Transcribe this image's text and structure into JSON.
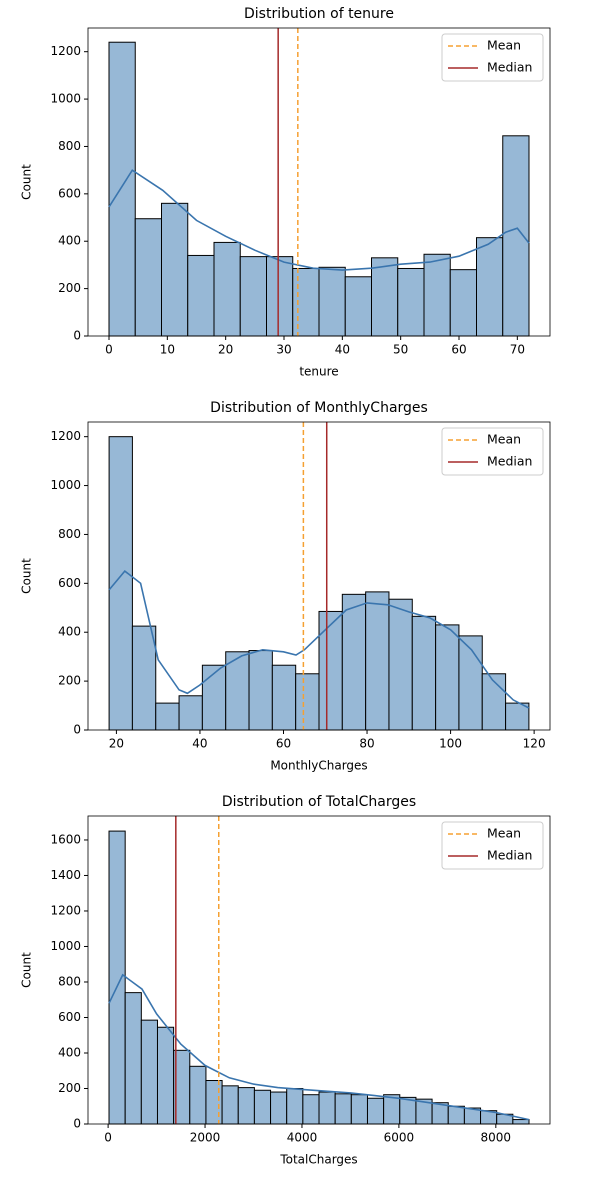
{
  "chart_data": [
    {
      "type": "histogram",
      "title": "Distribution of tenure",
      "x_label": "tenure",
      "y_label": "Count",
      "bins": [
        0,
        4.5,
        9,
        13.5,
        18,
        22.5,
        27,
        31.5,
        36,
        40.5,
        45,
        49.5,
        54,
        58.5,
        63,
        67.5,
        72
      ],
      "values": [
        1240,
        495,
        560,
        340,
        395,
        335,
        335,
        285,
        290,
        250,
        330,
        285,
        345,
        280,
        415,
        845
      ],
      "color": "#97b8d6",
      "edge_color": "#000000",
      "kde": {
        "color": "#3a75ae",
        "x": [
          0,
          4,
          9.2,
          15,
          20,
          25,
          30,
          35,
          40,
          45,
          50,
          55,
          60,
          65,
          68,
          70,
          72
        ],
        "values": [
          545,
          700,
          615,
          488,
          421,
          362,
          312,
          286,
          278,
          286,
          303,
          312,
          337,
          387,
          438,
          455,
          392
        ]
      },
      "lines": [
        {
          "name": "Mean",
          "value": 32.37,
          "color": "#f5a032",
          "style": "dashed"
        },
        {
          "name": "Median",
          "value": 29,
          "color": "#a52a2a",
          "style": "solid"
        }
      ],
      "xlim": [
        -3.6,
        75.6
      ],
      "ylim": [
        0,
        1300
      ],
      "xticks": [
        0,
        10,
        20,
        30,
        40,
        50,
        60,
        70
      ],
      "yticks": [
        0,
        200,
        400,
        600,
        800,
        1000,
        1200
      ],
      "legend": "upper right"
    },
    {
      "type": "histogram",
      "title": "Distribution of MonthlyCharges",
      "x_label": "MonthlyCharges",
      "y_label": "Count",
      "bins": [
        18.25,
        23.83,
        29.42,
        35,
        40.58,
        46.17,
        51.75,
        57.33,
        62.92,
        68.5,
        74.08,
        79.67,
        85.25,
        90.83,
        96.42,
        102,
        107.58,
        113.17,
        118.75
      ],
      "values": [
        1200,
        425,
        110,
        140,
        265,
        320,
        325,
        265,
        230,
        485,
        555,
        565,
        535,
        465,
        430,
        385,
        230,
        110
      ],
      "color": "#97b8d6",
      "edge_color": "#000000",
      "kde": {
        "color": "#3a75ae",
        "x": [
          18.25,
          22,
          25.8,
          30,
          35,
          37,
          40,
          45,
          50,
          55,
          60,
          63,
          65,
          70,
          75,
          80,
          85,
          90,
          95,
          100,
          105,
          110,
          115,
          118.75
        ],
        "values": [
          573,
          650,
          600,
          287,
          164,
          150,
          184,
          254,
          303,
          328,
          320,
          307,
          328,
          410,
          491,
          520,
          512,
          483,
          459,
          410,
          328,
          205,
          123,
          90
        ]
      },
      "lines": [
        {
          "name": "Mean",
          "value": 64.76,
          "color": "#f5a032",
          "style": "dashed"
        },
        {
          "name": "Median",
          "value": 70.35,
          "color": "#a52a2a",
          "style": "solid"
        }
      ],
      "xlim": [
        13.2,
        123.8
      ],
      "ylim": [
        0,
        1260
      ],
      "xticks": [
        20,
        40,
        60,
        80,
        100,
        120
      ],
      "yticks": [
        0,
        200,
        400,
        600,
        800,
        1000,
        1200
      ],
      "legend": "upper right"
    },
    {
      "type": "histogram",
      "title": "Distribution of TotalCharges",
      "x_label": "TotalCharges",
      "y_label": "Count",
      "bins": [
        18.8,
        352.1,
        685.4,
        1018.7,
        1352,
        1685.3,
        2018.7,
        2352,
        2685.3,
        3018.6,
        3351.9,
        3685.2,
        4018.5,
        4351.8,
        4685.1,
        5018.4,
        5351.8,
        5685.1,
        6018.4,
        6351.7,
        6685,
        7018.3,
        7351.6,
        7684.9,
        8018.2,
        8351.5,
        8684.8
      ],
      "values": [
        1650,
        740,
        585,
        545,
        415,
        325,
        245,
        215,
        205,
        190,
        180,
        200,
        165,
        180,
        170,
        165,
        145,
        165,
        150,
        140,
        120,
        100,
        90,
        75,
        55,
        25
      ],
      "color": "#97b8d6",
      "edge_color": "#000000",
      "kde": {
        "color": "#3a75ae",
        "x": [
          18.8,
          300,
          700,
          1000,
          1500,
          2000,
          2500,
          3000,
          3500,
          4000,
          4500,
          5000,
          5500,
          6000,
          6500,
          7000,
          7500,
          8000,
          8684.8
        ],
        "values": [
          680,
          840,
          760,
          620,
          450,
          330,
          260,
          225,
          205,
          195,
          185,
          175,
          160,
          145,
          125,
          105,
          85,
          65,
          25
        ]
      },
      "lines": [
        {
          "name": "Mean",
          "value": 2283,
          "color": "#f5a032",
          "style": "dashed"
        },
        {
          "name": "Median",
          "value": 1397,
          "color": "#a52a2a",
          "style": "solid"
        }
      ],
      "xlim": [
        -415,
        9118
      ],
      "ylim": [
        0,
        1735
      ],
      "xticks": [
        0,
        2000,
        4000,
        6000,
        8000
      ],
      "yticks": [
        0,
        200,
        400,
        600,
        800,
        1000,
        1200,
        1400,
        1600
      ],
      "legend": "upper right"
    }
  ]
}
